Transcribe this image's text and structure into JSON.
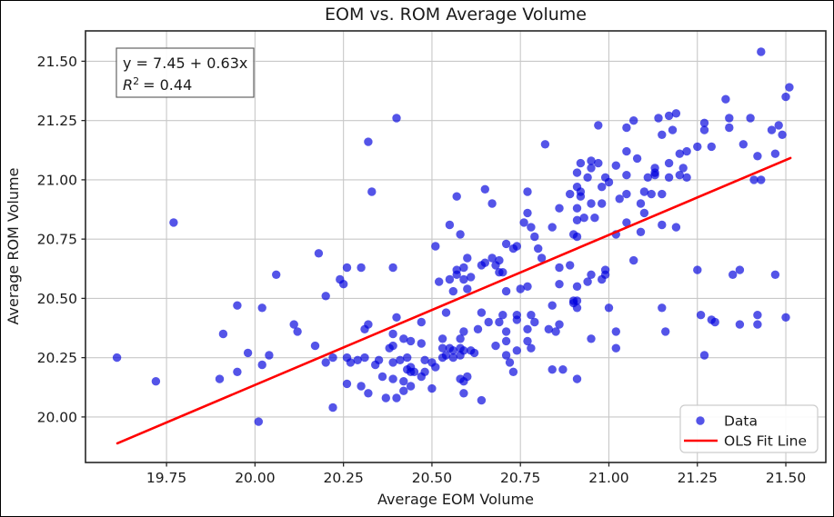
{
  "title": "EOM vs. ROM Average Volume",
  "annotation": {
    "equation": "y = 7.45 + 0.63x",
    "r_symbol": "R",
    "r_exponent": "2",
    "r_value": "= 0.44"
  },
  "legend": {
    "data_label": "Data",
    "line_label": "OLS Fit Line"
  },
  "chart_data": {
    "type": "scatter",
    "title": "EOM vs. ROM Average Volume",
    "xlabel": "Average EOM Volume",
    "ylabel": "Average ROM Volume",
    "xlim": [
      19.521,
      21.613
    ],
    "ylim": [
      19.808,
      21.628
    ],
    "x_ticks": [
      19.75,
      20.0,
      20.25,
      20.5,
      20.75,
      21.0,
      21.25,
      21.5
    ],
    "y_ticks": [
      20.0,
      20.25,
      20.5,
      20.75,
      21.0,
      21.25,
      21.5
    ],
    "grid": true,
    "legend_position": "lower right",
    "fit": {
      "equation": "y = 7.45 + 0.63x",
      "r_squared": 0.44
    },
    "series": [
      {
        "name": "Data",
        "type": "scatter",
        "color": "#0000dd",
        "opacity": 0.67,
        "points": [
          [
            21.43,
            21.54
          ],
          [
            21.51,
            21.39
          ],
          [
            21.5,
            21.35
          ],
          [
            21.33,
            21.34
          ],
          [
            20.97,
            21.23
          ],
          [
            21.05,
            21.22
          ],
          [
            21.07,
            21.25
          ],
          [
            21.14,
            21.26
          ],
          [
            21.17,
            21.27
          ],
          [
            21.19,
            21.28
          ],
          [
            21.18,
            21.21
          ],
          [
            21.15,
            21.19
          ],
          [
            21.27,
            21.24
          ],
          [
            21.27,
            21.21
          ],
          [
            21.34,
            21.26
          ],
          [
            21.34,
            21.22
          ],
          [
            21.4,
            21.26
          ],
          [
            21.38,
            21.15
          ],
          [
            21.42,
            21.1
          ],
          [
            21.29,
            21.14
          ],
          [
            21.25,
            21.14
          ],
          [
            21.22,
            21.12
          ],
          [
            21.2,
            21.11
          ],
          [
            21.17,
            21.07
          ],
          [
            21.21,
            21.05
          ],
          [
            21.46,
            21.21
          ],
          [
            21.48,
            21.23
          ],
          [
            21.49,
            21.19
          ],
          [
            21.47,
            21.11
          ],
          [
            20.97,
            21.07
          ],
          [
            20.95,
            21.08
          ],
          [
            20.95,
            21.05
          ],
          [
            20.92,
            21.07
          ],
          [
            21.05,
            21.12
          ],
          [
            21.08,
            21.09
          ],
          [
            21.13,
            21.05
          ],
          [
            21.13,
            21.03
          ],
          [
            21.02,
            21.06
          ],
          [
            20.4,
            21.26
          ],
          [
            20.32,
            21.16
          ],
          [
            20.82,
            21.15
          ],
          [
            20.91,
            21.03
          ],
          [
            19.77,
            20.82
          ],
          [
            20.18,
            20.69
          ],
          [
            20.06,
            20.6
          ],
          [
            20.2,
            20.51
          ],
          [
            19.95,
            20.47
          ],
          [
            20.02,
            20.46
          ],
          [
            20.33,
            20.95
          ],
          [
            20.57,
            20.93
          ],
          [
            20.65,
            20.96
          ],
          [
            20.67,
            20.9
          ],
          [
            20.77,
            20.95
          ],
          [
            20.77,
            20.86
          ],
          [
            20.76,
            20.82
          ],
          [
            20.78,
            20.8
          ],
          [
            20.79,
            20.76
          ],
          [
            20.55,
            20.81
          ],
          [
            20.58,
            20.77
          ],
          [
            20.51,
            20.72
          ],
          [
            20.71,
            20.73
          ],
          [
            20.73,
            20.71
          ],
          [
            20.74,
            20.72
          ],
          [
            20.6,
            20.67
          ],
          [
            20.67,
            20.67
          ],
          [
            20.65,
            20.65
          ],
          [
            20.64,
            20.64
          ],
          [
            20.68,
            20.64
          ],
          [
            20.69,
            20.66
          ],
          [
            20.57,
            20.62
          ],
          [
            20.59,
            20.63
          ],
          [
            20.57,
            20.6
          ],
          [
            20.59,
            20.58
          ],
          [
            20.61,
            20.59
          ],
          [
            20.69,
            20.61
          ],
          [
            20.7,
            20.61
          ],
          [
            20.55,
            20.58
          ],
          [
            20.3,
            20.63
          ],
          [
            20.26,
            20.63
          ],
          [
            20.24,
            20.58
          ],
          [
            20.25,
            20.56
          ],
          [
            20.39,
            20.63
          ],
          [
            20.56,
            20.53
          ],
          [
            20.6,
            20.54
          ],
          [
            20.71,
            20.53
          ],
          [
            20.75,
            20.54
          ],
          [
            20.52,
            20.57
          ],
          [
            20.7,
            20.43
          ],
          [
            20.4,
            20.42
          ],
          [
            20.54,
            20.44
          ],
          [
            20.64,
            20.44
          ],
          [
            20.77,
            20.55
          ],
          [
            20.8,
            20.71
          ],
          [
            20.81,
            20.67
          ],
          [
            20.91,
            20.83
          ],
          [
            20.9,
            20.77
          ],
          [
            20.89,
            20.64
          ],
          [
            20.86,
            20.63
          ],
          [
            20.86,
            20.56
          ],
          [
            20.9,
            20.49
          ],
          [
            20.9,
            20.48
          ],
          [
            20.84,
            20.47
          ],
          [
            20.78,
            20.43
          ],
          [
            20.74,
            20.43
          ],
          [
            20.89,
            20.94
          ],
          [
            20.91,
            20.97
          ],
          [
            20.86,
            20.88
          ],
          [
            20.84,
            20.8
          ],
          [
            20.94,
            21.01
          ],
          [
            20.99,
            21.01
          ],
          [
            21.05,
            21.02
          ],
          [
            21.11,
            21.01
          ],
          [
            21.13,
            21.02
          ],
          [
            21.17,
            21.01
          ],
          [
            21.2,
            21.02
          ],
          [
            21.22,
            21.01
          ],
          [
            20.98,
            20.97
          ],
          [
            21.0,
            20.99
          ],
          [
            21.05,
            20.94
          ],
          [
            21.1,
            20.95
          ],
          [
            21.12,
            20.94
          ],
          [
            21.15,
            20.94
          ],
          [
            21.09,
            20.9
          ],
          [
            21.1,
            20.86
          ],
          [
            21.03,
            20.92
          ],
          [
            20.95,
            20.9
          ],
          [
            20.98,
            20.9
          ],
          [
            20.92,
            20.93
          ],
          [
            20.92,
            20.95
          ],
          [
            20.91,
            20.88
          ],
          [
            20.93,
            20.84
          ],
          [
            20.96,
            20.84
          ],
          [
            21.05,
            20.82
          ],
          [
            21.02,
            20.77
          ],
          [
            21.09,
            20.78
          ],
          [
            21.15,
            20.81
          ],
          [
            21.19,
            20.8
          ],
          [
            20.91,
            20.76
          ],
          [
            21.41,
            21.0
          ],
          [
            21.43,
            21.0
          ],
          [
            21.07,
            20.66
          ],
          [
            20.99,
            20.62
          ],
          [
            20.99,
            20.6
          ],
          [
            20.95,
            20.6
          ],
          [
            20.98,
            20.58
          ],
          [
            20.94,
            20.57
          ],
          [
            20.91,
            20.55
          ],
          [
            21.25,
            20.62
          ],
          [
            21.35,
            20.6
          ],
          [
            21.37,
            20.62
          ],
          [
            21.47,
            20.6
          ],
          [
            20.91,
            20.49
          ],
          [
            20.91,
            20.46
          ],
          [
            21.0,
            20.46
          ],
          [
            21.15,
            20.46
          ],
          [
            21.26,
            20.43
          ],
          [
            21.42,
            20.43
          ],
          [
            21.5,
            20.42
          ],
          [
            21.29,
            20.41
          ],
          [
            19.61,
            20.25
          ],
          [
            19.72,
            20.15
          ],
          [
            19.91,
            20.35
          ],
          [
            19.9,
            20.16
          ],
          [
            19.98,
            20.27
          ],
          [
            19.95,
            20.19
          ],
          [
            20.02,
            20.22
          ],
          [
            20.04,
            20.26
          ],
          [
            20.11,
            20.39
          ],
          [
            20.12,
            20.36
          ],
          [
            20.17,
            20.3
          ],
          [
            20.2,
            20.23
          ],
          [
            20.01,
            19.98
          ],
          [
            20.22,
            20.04
          ],
          [
            20.32,
            20.39
          ],
          [
            20.31,
            20.37
          ],
          [
            20.47,
            20.4
          ],
          [
            20.59,
            20.36
          ],
          [
            20.63,
            20.37
          ],
          [
            20.66,
            20.4
          ],
          [
            20.69,
            20.4
          ],
          [
            20.71,
            20.36
          ],
          [
            20.74,
            20.41
          ],
          [
            20.77,
            20.37
          ],
          [
            20.79,
            20.4
          ],
          [
            20.83,
            20.37
          ],
          [
            20.86,
            20.39
          ],
          [
            20.85,
            20.36
          ],
          [
            20.39,
            20.35
          ],
          [
            20.38,
            20.29
          ],
          [
            20.39,
            20.3
          ],
          [
            20.42,
            20.33
          ],
          [
            20.44,
            20.32
          ],
          [
            20.47,
            20.31
          ],
          [
            20.53,
            20.33
          ],
          [
            20.58,
            20.33
          ],
          [
            20.53,
            20.29
          ],
          [
            20.55,
            20.29
          ],
          [
            20.56,
            20.28
          ],
          [
            20.58,
            20.29
          ],
          [
            20.59,
            20.28
          ],
          [
            20.61,
            20.28
          ],
          [
            20.62,
            20.27
          ],
          [
            20.68,
            20.3
          ],
          [
            20.71,
            20.32
          ],
          [
            20.74,
            20.28
          ],
          [
            20.77,
            20.32
          ],
          [
            20.78,
            20.29
          ],
          [
            20.26,
            20.25
          ],
          [
            20.29,
            20.24
          ],
          [
            20.31,
            20.25
          ],
          [
            20.34,
            20.22
          ],
          [
            20.35,
            20.24
          ],
          [
            20.39,
            20.23
          ],
          [
            20.41,
            20.24
          ],
          [
            20.43,
            20.25
          ],
          [
            20.43,
            20.2
          ],
          [
            20.44,
            20.21
          ],
          [
            20.44,
            20.19
          ],
          [
            20.45,
            20.19
          ],
          [
            20.48,
            20.24
          ],
          [
            20.5,
            20.23
          ],
          [
            20.22,
            20.25
          ],
          [
            20.27,
            20.23
          ],
          [
            20.53,
            20.25
          ],
          [
            20.54,
            20.26
          ],
          [
            20.56,
            20.25
          ],
          [
            20.58,
            20.26
          ],
          [
            20.51,
            20.21
          ],
          [
            20.48,
            20.19
          ],
          [
            20.47,
            20.17
          ],
          [
            20.71,
            20.26
          ],
          [
            20.72,
            20.23
          ],
          [
            20.36,
            20.17
          ],
          [
            20.39,
            20.16
          ],
          [
            20.42,
            20.15
          ],
          [
            20.44,
            20.13
          ],
          [
            20.3,
            20.13
          ],
          [
            20.26,
            20.14
          ],
          [
            20.32,
            20.1
          ],
          [
            20.37,
            20.08
          ],
          [
            20.4,
            20.08
          ],
          [
            20.42,
            20.11
          ],
          [
            20.5,
            20.12
          ],
          [
            20.58,
            20.16
          ],
          [
            20.59,
            20.15
          ],
          [
            20.6,
            20.17
          ],
          [
            20.59,
            20.1
          ],
          [
            20.64,
            20.07
          ],
          [
            20.73,
            20.19
          ],
          [
            20.84,
            20.2
          ],
          [
            20.87,
            20.2
          ],
          [
            20.95,
            20.33
          ],
          [
            21.02,
            20.36
          ],
          [
            21.02,
            20.29
          ],
          [
            21.16,
            20.36
          ],
          [
            21.3,
            20.4
          ],
          [
            21.37,
            20.39
          ],
          [
            21.42,
            20.39
          ],
          [
            21.27,
            20.26
          ],
          [
            20.91,
            20.16
          ]
        ]
      },
      {
        "name": "OLS Fit Line",
        "type": "line",
        "color": "#ff0000",
        "x": [
          19.611,
          21.513
        ],
        "y": [
          19.889,
          21.092
        ]
      }
    ]
  }
}
